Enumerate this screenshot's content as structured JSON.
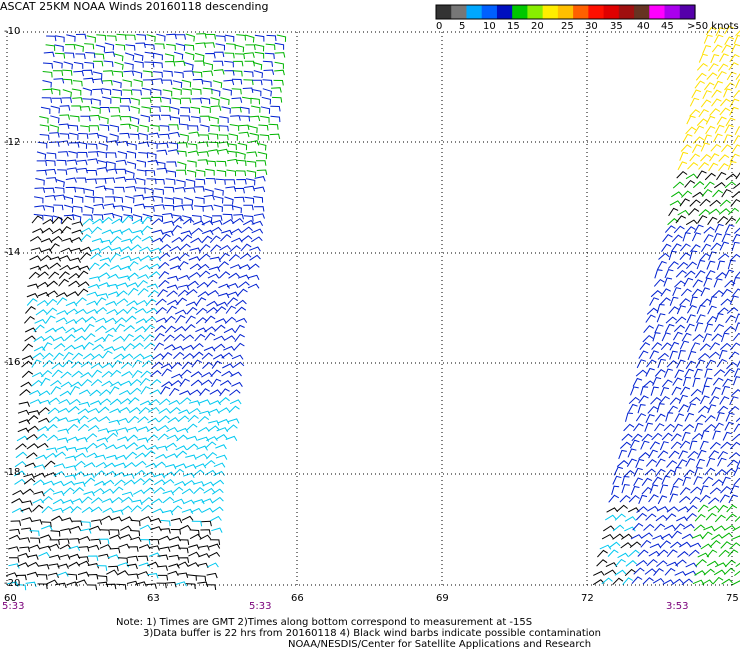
{
  "title": "ASCAT 25KM NOAA Winds 20160118 descending",
  "colorbar": {
    "colors": [
      "#333333",
      "#777777",
      "#00a8ff",
      "#0060ff",
      "#0010c0",
      "#00c800",
      "#88ee00",
      "#ffee00",
      "#ffc000",
      "#ff6000",
      "#ff1000",
      "#e00000",
      "#a01010",
      "#663322",
      "#ff00ff",
      "#aa00ee",
      "#5500aa"
    ],
    "tick_labels": [
      "0",
      "5",
      "10",
      "15",
      "20",
      "25",
      "30",
      "35",
      "40",
      "45",
      ">50 knots"
    ]
  },
  "lat_labels": [
    "-10",
    "-12",
    "-14",
    "-16",
    "-18",
    "-20"
  ],
  "lon_labels": [
    "60",
    "63",
    "66",
    "69",
    "72",
    "75"
  ],
  "time_labels": [
    "5:33",
    "5:33",
    "3:53"
  ],
  "notes": [
    "Note: 1) Times are GMT 2)Times along bottom correspond to measurement at -15S",
    "3)Data buffer is 22 hrs from 20160118 4) Black wind barbs indicate possible contamination",
    "NOAA/NESDIS/Center for Satellite Applications and Research"
  ]
}
